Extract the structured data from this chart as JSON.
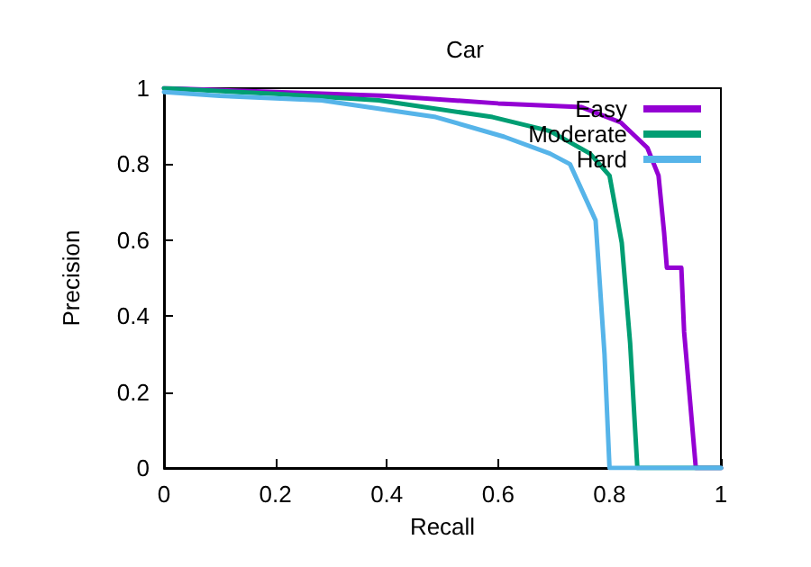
{
  "chart_data": {
    "type": "line",
    "title": "Car",
    "xlabel": "Recall",
    "ylabel": "Precision",
    "xlim": [
      0,
      1
    ],
    "ylim": [
      0,
      1
    ],
    "xticks": [
      0,
      0.2,
      0.4,
      0.6,
      0.8,
      1
    ],
    "yticks": [
      0,
      0.2,
      0.4,
      0.6,
      0.8,
      1
    ],
    "grid": false,
    "legend": "top right",
    "marker": "none",
    "line_style": "solid",
    "series": [
      {
        "name": "Easy",
        "color": "#9400d3",
        "x": [
          0,
          0.2,
          0.4,
          0.6,
          0.75,
          0.82,
          0.868,
          0.888,
          0.898,
          0.903,
          0.929,
          0.934,
          0.955,
          1
        ],
        "values": [
          1,
          0.99,
          0.98,
          0.96,
          0.95,
          0.91,
          0.843,
          0.77,
          0.62,
          0.527,
          0.527,
          0.358,
          0,
          0
        ]
      },
      {
        "name": "Moderate",
        "color": "#009e73",
        "x": [
          0,
          0.2,
          0.386,
          0.59,
          0.693,
          0.765,
          0.8,
          0.822,
          0.837,
          0.85,
          1
        ],
        "values": [
          1,
          0.985,
          0.968,
          0.924,
          0.887,
          0.828,
          0.77,
          0.593,
          0.329,
          0,
          0
        ]
      },
      {
        "name": "Hard",
        "color": "#56b4e9",
        "x": [
          0,
          0.1,
          0.283,
          0.488,
          0.611,
          0.693,
          0.729,
          0.775,
          0.791,
          0.8,
          1
        ],
        "values": [
          0.99,
          0.98,
          0.968,
          0.924,
          0.872,
          0.828,
          0.8,
          0.652,
          0.3,
          0,
          0
        ]
      }
    ]
  }
}
